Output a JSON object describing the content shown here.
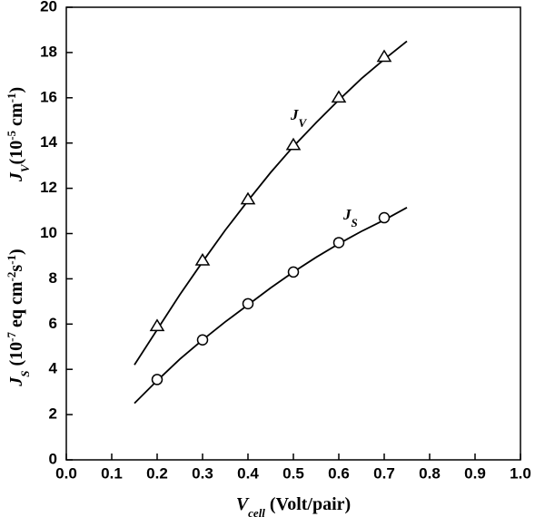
{
  "chart_data": {
    "type": "scatter",
    "xlabel": [
      {
        "text": "V",
        "italic": true
      },
      {
        "sub": "cell",
        "italic": true
      },
      {
        "text": " (Volt/pair)"
      }
    ],
    "ylabels": [
      [
        {
          "text": "J",
          "italic": true
        },
        {
          "sub": "V",
          "italic": true
        },
        {
          "text": "(10"
        },
        {
          "sup": "-5"
        },
        {
          "text": " cm"
        },
        {
          "sup": "-1"
        },
        {
          "text": ")"
        }
      ],
      [
        {
          "text": "J",
          "italic": true
        },
        {
          "sub": "S",
          "italic": true
        },
        {
          "text": " (10"
        },
        {
          "sup": "-7"
        },
        {
          "text": " eq cm"
        },
        {
          "sup": "-2"
        },
        {
          "text": "s"
        },
        {
          "sup": "-1"
        },
        {
          "text": ")"
        }
      ]
    ],
    "annotations": [
      [
        {
          "text": "J"
        },
        {
          "sub": "V"
        }
      ],
      [
        {
          "text": "J"
        },
        {
          "sub": "S"
        }
      ]
    ],
    "xlim": [
      0,
      1
    ],
    "ylim": [
      0,
      20
    ],
    "xticks": [
      {
        "value": 0,
        "label": "0.0"
      },
      0.1,
      0.2,
      0.3,
      0.4,
      0.5,
      0.6,
      0.7,
      0.8,
      0.9,
      {
        "value": 1,
        "label": "1.0"
      }
    ],
    "yticks": [
      0,
      2,
      4,
      6,
      8,
      10,
      12,
      14,
      16,
      18,
      20
    ],
    "color": "#000000",
    "series": [
      {
        "marker": "triangle",
        "x": [
          0.2,
          0.3,
          0.4,
          0.5,
          0.6,
          0.7
        ],
        "values": [
          5.9,
          8.8,
          11.5,
          13.9,
          16.0,
          17.8
        ]
      },
      {
        "marker": "circle",
        "x": [
          0.2,
          0.3,
          0.4,
          0.5,
          0.6,
          0.7
        ],
        "values": [
          3.55,
          5.3,
          6.9,
          8.3,
          9.6,
          10.7
        ]
      },
      {
        "marker": "line",
        "x": [
          0.15,
          0.2,
          0.25,
          0.3,
          0.35,
          0.4,
          0.45,
          0.5,
          0.55,
          0.6,
          0.65,
          0.7,
          0.75
        ],
        "values": [
          4.2,
          5.75,
          7.3,
          8.75,
          10.15,
          11.45,
          12.7,
          13.85,
          14.9,
          15.9,
          16.85,
          17.7,
          18.5
        ]
      },
      {
        "marker": "line",
        "x": [
          0.15,
          0.2,
          0.25,
          0.3,
          0.35,
          0.4,
          0.45,
          0.5,
          0.55,
          0.6,
          0.65,
          0.7,
          0.75
        ],
        "values": [
          2.5,
          3.5,
          4.45,
          5.3,
          6.1,
          6.85,
          7.6,
          8.3,
          8.95,
          9.55,
          10.1,
          10.6,
          11.15
        ]
      }
    ]
  }
}
